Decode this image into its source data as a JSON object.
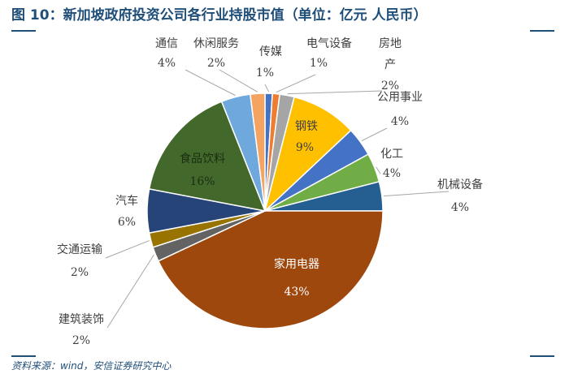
{
  "title": "图 10：新加坡政府投资公司各行业持股市值（单位：亿元 人民币）",
  "source": "资料来源：wind，安信证券研究中心",
  "chart_data": {
    "type": "pie",
    "title": "图 10：新加坡政府投资公司各行业持股市值（单位：亿元 人民币）",
    "start_angle_deg": 0,
    "direction": "clockwise",
    "slices": [
      {
        "name": "传媒",
        "label": "1%",
        "value": 1,
        "color": "#4472c4"
      },
      {
        "name": "电气设备",
        "label": "1%",
        "value": 1,
        "color": "#ed7d31"
      },
      {
        "name": "房地产",
        "label": "2%",
        "value": 2,
        "color": "#a5a5a5"
      },
      {
        "name": "钢铁",
        "label": "9%",
        "value": 9,
        "color": "#ffc000"
      },
      {
        "name": "公用事业",
        "label": "4%",
        "value": 4,
        "color": "#4472c4"
      },
      {
        "name": "化工",
        "label": "4%",
        "value": 4,
        "color": "#70ad47"
      },
      {
        "name": "机械设备",
        "label": "4%",
        "value": 4,
        "color": "#255e91"
      },
      {
        "name": "家用电器",
        "label": "43%",
        "value": 43,
        "color": "#9e480e"
      },
      {
        "name": "建筑装饰",
        "label": "2%",
        "value": 2,
        "color": "#636363"
      },
      {
        "name": "交通运输",
        "label": "2%",
        "value": 2,
        "color": "#997300"
      },
      {
        "name": "汽车",
        "label": "6%",
        "value": 6,
        "color": "#264478"
      },
      {
        "name": "食品饮料",
        "label": "16%",
        "value": 16,
        "color": "#43682b"
      },
      {
        "name": "通信",
        "label": "4%",
        "value": 4,
        "color": "#6fa8dc"
      },
      {
        "name": "休闲服务",
        "label": "2%",
        "value": 2,
        "color": "#f4a460"
      }
    ]
  }
}
